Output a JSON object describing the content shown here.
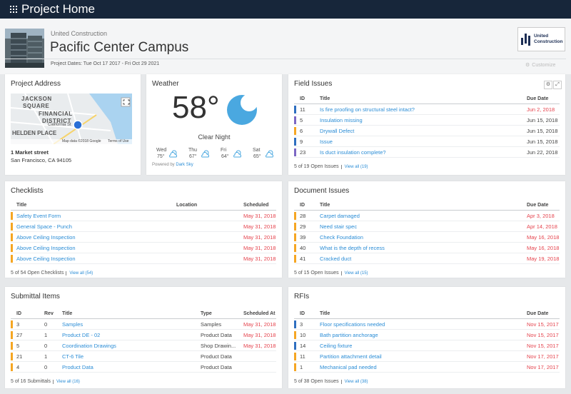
{
  "header": {
    "app_title": "Project Home",
    "company": "United Construction",
    "project_name": "Pacific Center Campus",
    "project_dates": "Project Dates: Tue Oct 17 2017 - Fri Oct 29 2021",
    "customize": "Customize",
    "logo": [
      "United",
      "Construction"
    ]
  },
  "project_address": {
    "title": "Project Address",
    "map_labels": [
      "JACKSON",
      "SQUARE",
      "FINANCIAL",
      "DISTRICT",
      "HELDEN PLACE",
      "California St"
    ],
    "map_attribution": "Map data ©2018 Google",
    "map_terms": "Terms of Use",
    "street": "1 Market street",
    "city": "San Francisco, CA 94105"
  },
  "weather": {
    "title": "Weather",
    "temperature": "58°",
    "condition": "Clear Night",
    "icon_color": "#4aa8e0",
    "forecast": [
      {
        "day": "Wed",
        "temp": "75°"
      },
      {
        "day": "Thu",
        "temp": "67°"
      },
      {
        "day": "Fri",
        "temp": "64°"
      },
      {
        "day": "Sat",
        "temp": "65°"
      }
    ],
    "powered_by": "Powered by",
    "provider": "Dark Sky"
  },
  "field_issues": {
    "title": "Field Issues",
    "columns": [
      "ID",
      "Title",
      "Due Date"
    ],
    "rows": [
      {
        "id": "11",
        "title": "Is fire proofing on structural steel intact?",
        "due_date": "Jun 2, 2018",
        "stripe_color": "#2f6fc0",
        "date_color": "#e5434d"
      },
      {
        "id": "5",
        "title": "Insulation missing",
        "due_date": "Jun 15, 2018",
        "stripe_color": "#7c67c4",
        "date_color": "#444444"
      },
      {
        "id": "6",
        "title": "Drywall Defect",
        "due_date": "Jun 15, 2018",
        "stripe_color": "#f5a623",
        "date_color": "#444444"
      },
      {
        "id": "9",
        "title": "Issue",
        "due_date": "Jun 15, 2018",
        "stripe_color": "#2f6fc0",
        "date_color": "#444444"
      },
      {
        "id": "23",
        "title": "Is duct insulation complete?",
        "due_date": "Jun 22, 2018",
        "stripe_color": "#7c67c4",
        "date_color": "#444444"
      }
    ],
    "footer": "5 of 19 Open Issues",
    "view_all": "View all (19)"
  },
  "checklists": {
    "title": "Checklists",
    "columns": [
      "Title",
      "Location",
      "Scheduled"
    ],
    "rows": [
      {
        "title": "Safety Event Form",
        "scheduled": "May 31, 2018",
        "stripe_color": "#f5a623",
        "date_color": "#e5434d"
      },
      {
        "title": "General Space - Punch",
        "scheduled": "May 31, 2018",
        "stripe_color": "#f5a623",
        "date_color": "#e5434d"
      },
      {
        "title": "Above Ceiling Inspection",
        "scheduled": "May 31, 2018",
        "stripe_color": "#f5a623",
        "date_color": "#e5434d"
      },
      {
        "title": "Above Ceiling Inspection",
        "scheduled": "May 31, 2018",
        "stripe_color": "#f5a623",
        "date_color": "#e5434d"
      },
      {
        "title": "Above Ceiling Inspection",
        "scheduled": "May 31, 2018",
        "stripe_color": "#f5a623",
        "date_color": "#e5434d"
      }
    ],
    "footer": "5 of 54 Open Checklists",
    "view_all": "View all (54)"
  },
  "document_issues": {
    "title": "Document Issues",
    "columns": [
      "ID",
      "Title",
      "Due Date"
    ],
    "rows": [
      {
        "id": "28",
        "title": "Carpet damaged",
        "due_date": "Apr 3, 2018",
        "stripe_color": "#f5a623",
        "date_color": "#e5434d"
      },
      {
        "id": "29",
        "title": "Need stair spec",
        "due_date": "Apr 14, 2018",
        "stripe_color": "#f5a623",
        "date_color": "#e5434d"
      },
      {
        "id": "39",
        "title": "Check Foundation",
        "due_date": "May 16, 2018",
        "stripe_color": "#f5a623",
        "date_color": "#e5434d"
      },
      {
        "id": "40",
        "title": "What is the depth of recess",
        "due_date": "May 16, 2018",
        "stripe_color": "#f5a623",
        "date_color": "#e5434d"
      },
      {
        "id": "41",
        "title": "Cracked duct",
        "due_date": "May 19, 2018",
        "stripe_color": "#f5a623",
        "date_color": "#e5434d"
      }
    ],
    "footer": "5 of 15 Open Issues",
    "view_all": "View all (15)"
  },
  "submittal_items": {
    "title": "Submittal Items",
    "columns": [
      "ID",
      "Rev",
      "Title",
      "Type",
      "Scheduled At"
    ],
    "rows": [
      {
        "id": "3",
        "rev": "0",
        "title": "Samples",
        "type": "Samples",
        "scheduled_at": "May 31, 2018",
        "stripe_color": "#f5a623",
        "date_color": "#e5434d"
      },
      {
        "id": "27",
        "rev": "1",
        "title": "Product DE - 02",
        "type": "Product Data",
        "scheduled_at": "May 31, 2018",
        "stripe_color": "#f5a623",
        "date_color": "#e5434d"
      },
      {
        "id": "5",
        "rev": "0",
        "title": "Coordination Drawings",
        "type": "Shop Drawin...",
        "scheduled_at": "May 31, 2018",
        "stripe_color": "#f5a623",
        "date_color": "#e5434d"
      },
      {
        "id": "21",
        "rev": "1",
        "title": "CT-6 Tile",
        "type": "Product Data",
        "scheduled_at": null,
        "stripe_color": "#f5a623",
        "date_color": "#e5434d"
      },
      {
        "id": "4",
        "rev": "0",
        "title": "Product Data",
        "type": "Product Data",
        "scheduled_at": null,
        "stripe_color": "#f5a623",
        "date_color": "#e5434d"
      }
    ],
    "footer": "5 of 16 Submittals",
    "view_all": "View all (16)"
  },
  "rfis": {
    "title": "RFIs",
    "columns": [
      "ID",
      "Title",
      "Due Date"
    ],
    "rows": [
      {
        "id": "3",
        "title": "Floor specifications needed",
        "due_date": "Nov 15, 2017",
        "stripe_color": "#2f6fc0",
        "date_color": "#e5434d"
      },
      {
        "id": "10",
        "title": "Bath partition anchorage",
        "due_date": "Nov 15, 2017",
        "stripe_color": "#f5a623",
        "date_color": "#e5434d"
      },
      {
        "id": "14",
        "title": "Ceiling fixture",
        "due_date": "Nov 15, 2017",
        "stripe_color": "#2f6fc0",
        "date_color": "#e5434d"
      },
      {
        "id": "11",
        "title": "Partition attachment detail",
        "due_date": "Nov 17, 2017",
        "stripe_color": "#f5a623",
        "date_color": "#e5434d"
      },
      {
        "id": "1",
        "title": "Mechanical pad needed",
        "due_date": "Nov 17, 2017",
        "stripe_color": "#f5a623",
        "date_color": "#e5434d"
      }
    ],
    "footer": "5 of 38 Open Issues",
    "view_all": "View all (38)"
  }
}
